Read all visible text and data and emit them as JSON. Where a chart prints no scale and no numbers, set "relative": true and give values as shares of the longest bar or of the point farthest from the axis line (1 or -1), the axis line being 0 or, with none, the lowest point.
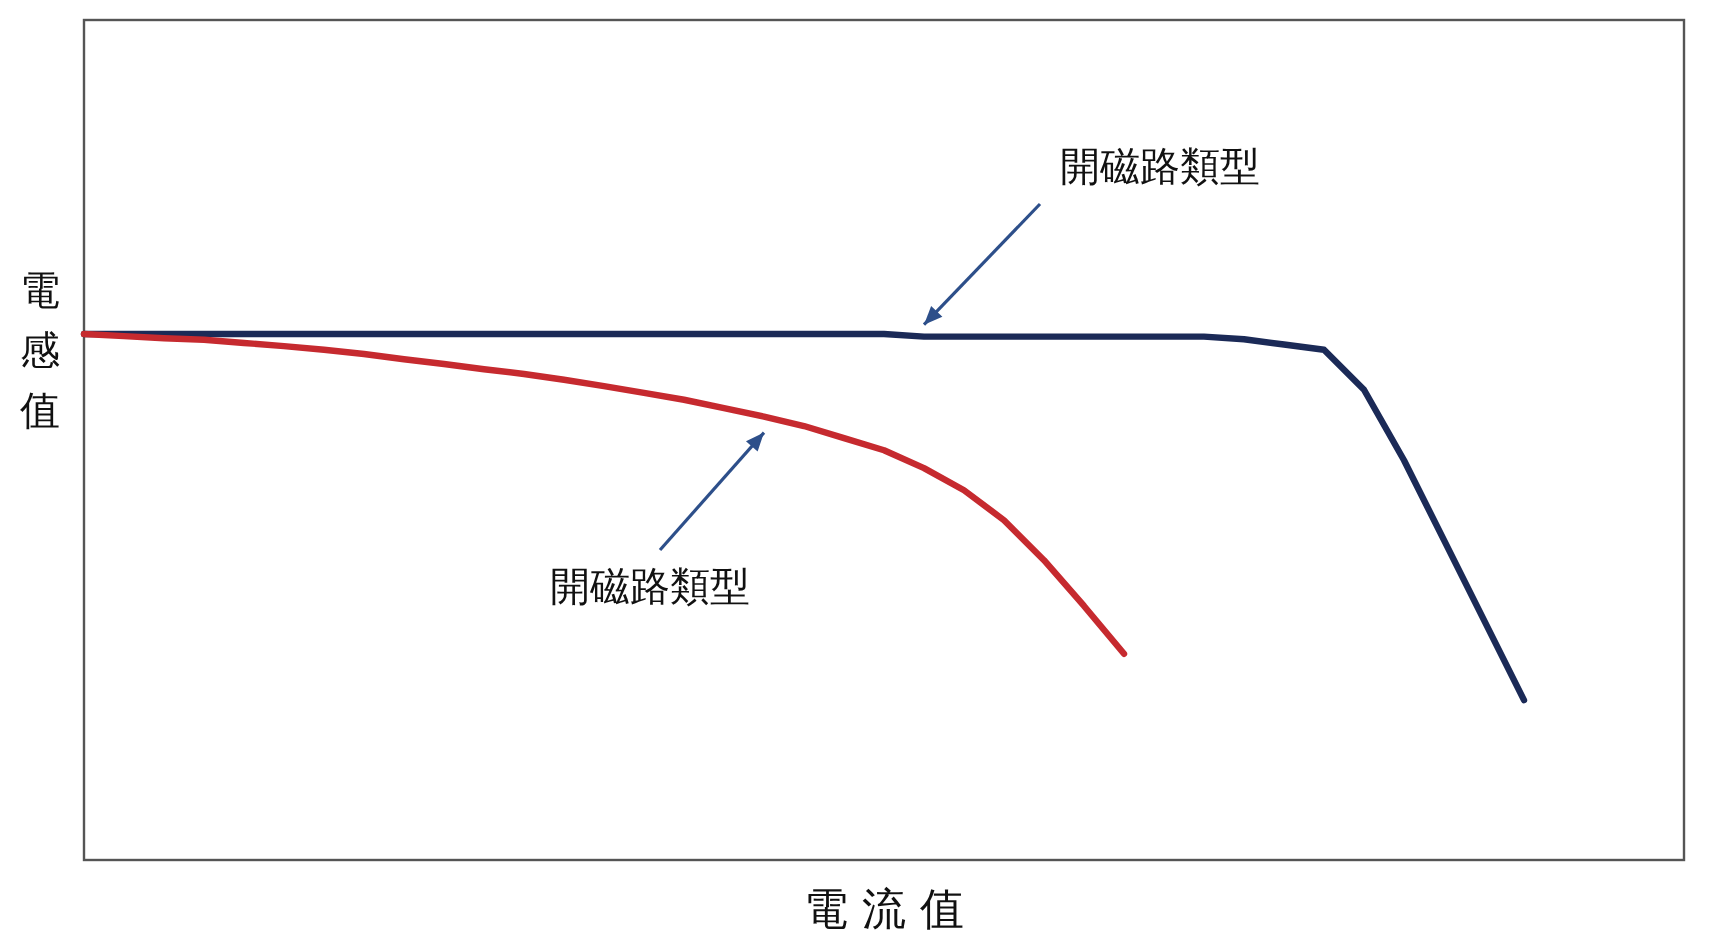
{
  "chart_data": {
    "type": "line",
    "relative": true,
    "xlabel": "電 流 值",
    "ylabel": "電感值",
    "categories": [
      null,
      null,
      null,
      null,
      null,
      null,
      null,
      null,
      null,
      null,
      null,
      null,
      null,
      null,
      null,
      null,
      null,
      null,
      null,
      null,
      null,
      null,
      null,
      null,
      null,
      null,
      null,
      null,
      null,
      null,
      null,
      null,
      null,
      null,
      null,
      null,
      null,
      null,
      null,
      null,
      null
    ],
    "series": [
      {
        "color": "#1b2a57",
        "values": [
          1.0,
          1.0,
          1.0,
          1.0,
          1.0,
          1.0,
          1.0,
          1.0,
          1.0,
          1.0,
          1.0,
          1.0,
          1.0,
          1.0,
          1.0,
          1.0,
          1.0,
          1.0,
          1.0,
          1.0,
          1.0,
          0.995,
          0.995,
          0.995,
          0.995,
          0.995,
          0.995,
          0.995,
          0.995,
          0.99,
          0.98,
          0.97,
          0.894,
          0.76,
          0.608,
          0.456,
          0.304,
          null,
          null,
          null,
          null
        ]
      },
      {
        "color": "#c62a2f",
        "values": [
          1.0,
          0.996,
          0.992,
          0.989,
          0.983,
          0.977,
          0.97,
          0.962,
          0.952,
          0.943,
          0.933,
          0.924,
          0.913,
          0.901,
          0.888,
          0.875,
          0.859,
          0.843,
          0.825,
          0.802,
          0.779,
          0.745,
          0.703,
          0.646,
          0.57,
          0.483,
          0.392,
          null,
          null,
          null,
          null,
          null,
          null,
          null,
          null,
          null,
          null,
          null,
          null,
          null,
          null
        ]
      }
    ],
    "annotations": [
      "開磁路類型",
      "開磁路類型"
    ]
  }
}
